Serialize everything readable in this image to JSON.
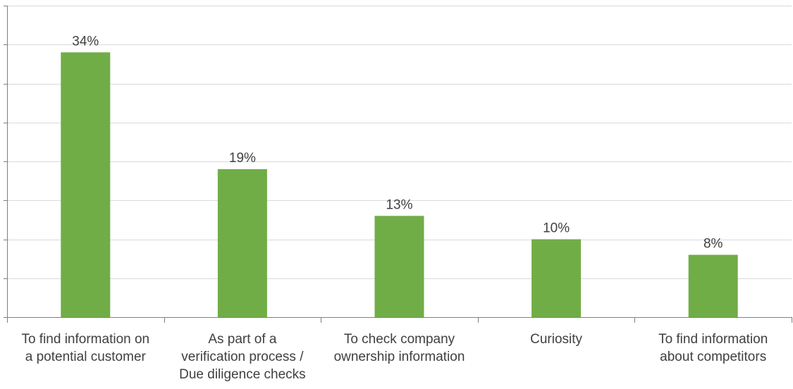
{
  "chart_data": {
    "type": "bar",
    "categories": [
      [
        "To find information on",
        "a potential customer"
      ],
      [
        "As part of a",
        "verification process /",
        "Due diligence checks"
      ],
      [
        "To check company",
        "ownership information"
      ],
      [
        "Curiosity"
      ],
      [
        "To find information",
        "about competitors"
      ]
    ],
    "values": [
      34,
      19,
      13,
      10,
      8
    ],
    "data_labels": [
      "34%",
      "19%",
      "13%",
      "10%",
      "8%"
    ],
    "ylim": [
      0,
      40
    ],
    "y_tick_step": 5,
    "grid": true,
    "bar_color": "#70ad47",
    "grid_color": "#d9d9d9",
    "axis_color": "#7f7f7f"
  }
}
